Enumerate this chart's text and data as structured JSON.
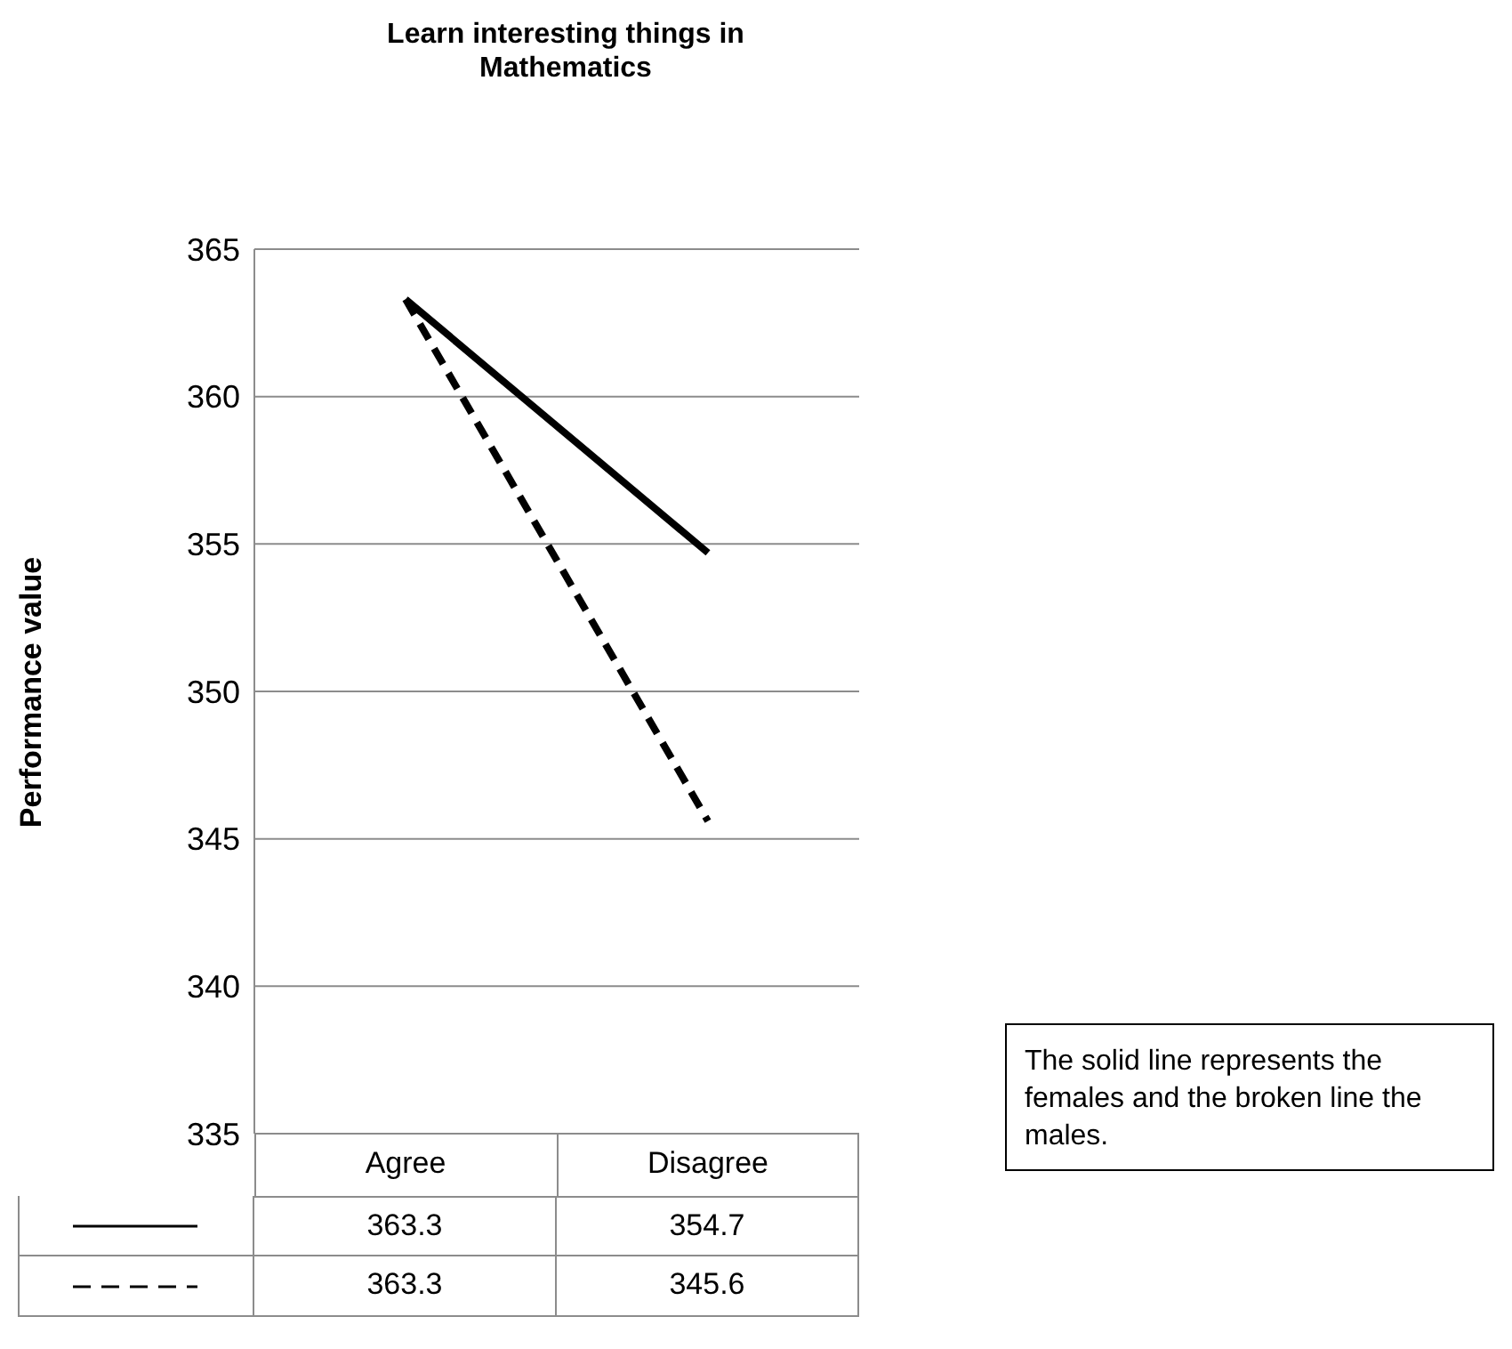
{
  "chart_data": {
    "type": "line",
    "title": "Learn interesting things in Mathematics",
    "ylabel": "Performance value",
    "categories": [
      "Agree",
      "Disagree"
    ],
    "series": [
      {
        "color": "#000000",
        "line_style": "solid",
        "values": [
          363.3,
          354.7
        ]
      },
      {
        "color": "#000000",
        "line_style": "dashed",
        "values": [
          363.3,
          345.6
        ]
      }
    ],
    "ylim": [
      335,
      365
    ],
    "yticks": [
      335,
      340,
      345,
      350,
      355,
      360,
      365
    ],
    "grid": "y",
    "marker": "none",
    "data_labels": true,
    "annotations": [
      "The solid line represents the females and the broken line the males."
    ]
  }
}
